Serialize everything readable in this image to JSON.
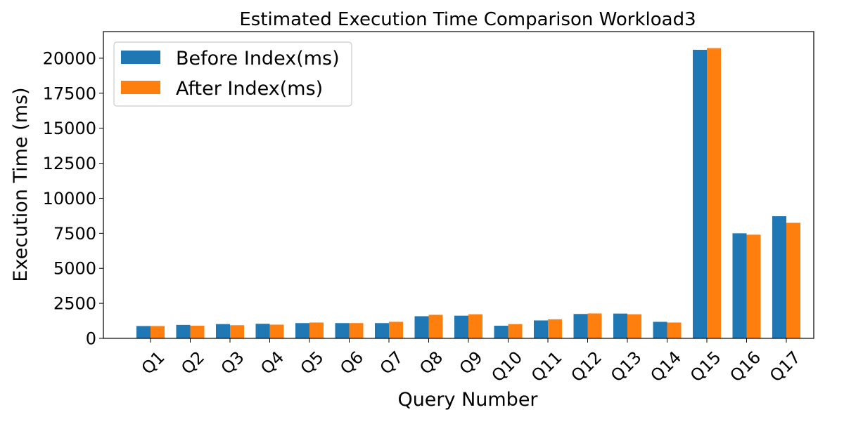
{
  "chart_data": {
    "type": "bar",
    "title": "Estimated Execution Time Comparison Workload3",
    "xlabel": "Query Number",
    "ylabel": "Execution Time (ms)",
    "categories": [
      "Q1",
      "Q2",
      "Q3",
      "Q4",
      "Q5",
      "Q6",
      "Q7",
      "Q8",
      "Q9",
      "Q10",
      "Q11",
      "Q12",
      "Q13",
      "Q14",
      "Q15",
      "Q16",
      "Q17"
    ],
    "series": [
      {
        "name": "Before Index(ms)",
        "color": "#1f77b4",
        "values": [
          880,
          960,
          1020,
          1040,
          1090,
          1090,
          1090,
          1580,
          1620,
          900,
          1280,
          1740,
          1770,
          1180,
          20600,
          7500,
          8720
        ]
      },
      {
        "name": "After Index(ms)",
        "color": "#ff7f0e",
        "values": [
          880,
          900,
          940,
          980,
          1130,
          1090,
          1180,
          1680,
          1720,
          1020,
          1360,
          1780,
          1720,
          1130,
          20720,
          7400,
          8250
        ]
      }
    ],
    "ylim": [
      0,
      21900
    ],
    "yticks": [
      0,
      2500,
      5000,
      7500,
      10000,
      12500,
      15000,
      17500,
      20000
    ],
    "grid": false,
    "legend_position": "top-left"
  }
}
